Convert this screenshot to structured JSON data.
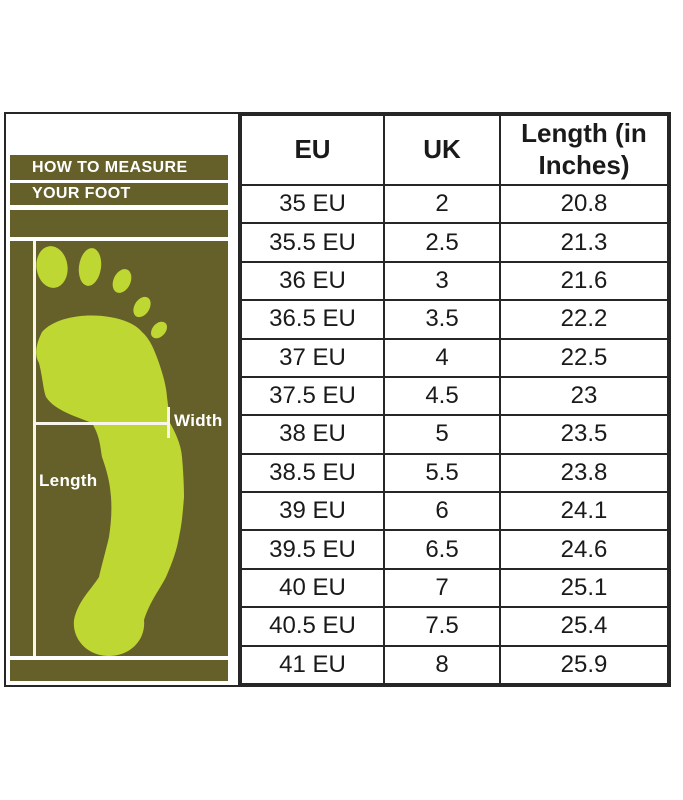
{
  "panel": {
    "title_line1": "HOW TO MEASURE",
    "title_line2": "YOUR FOOT",
    "width_label": "Width",
    "length_label": "Length"
  },
  "table": {
    "columns": [
      "EU",
      "UK",
      "Length (in Inches)"
    ],
    "rows": [
      [
        "35 EU",
        "2",
        "20.8"
      ],
      [
        "35.5 EU",
        "2.5",
        "21.3"
      ],
      [
        "36 EU",
        "3",
        "21.6"
      ],
      [
        "36.5 EU",
        "3.5",
        "22.2"
      ],
      [
        "37 EU",
        "4",
        "22.5"
      ],
      [
        "37.5 EU",
        "4.5",
        "23"
      ],
      [
        "38 EU",
        "5",
        "23.5"
      ],
      [
        "38.5 EU",
        "5.5",
        "23.8"
      ],
      [
        "39 EU",
        "6",
        "24.1"
      ],
      [
        "39.5 EU",
        "6.5",
        "24.6"
      ],
      [
        "40 EU",
        "7",
        "25.1"
      ],
      [
        "40.5 EU",
        "7.5",
        "25.4"
      ],
      [
        "41 EU",
        "8",
        "25.9"
      ]
    ]
  },
  "colors": {
    "olive": "#65602a",
    "foot_green": "#bfd732",
    "measure_line": "#f7f5ea",
    "table_border": "#262626",
    "text": "#1a1a1a"
  },
  "chart_data": {
    "type": "table",
    "columns": [
      "EU",
      "UK",
      "Length (in Inches)"
    ],
    "rows": [
      [
        "35 EU",
        2,
        20.8
      ],
      [
        "35.5 EU",
        2.5,
        21.3
      ],
      [
        "36 EU",
        3,
        21.6
      ],
      [
        "36.5 EU",
        3.5,
        22.2
      ],
      [
        "37 EU",
        4,
        22.5
      ],
      [
        "37.5 EU",
        4.5,
        23
      ],
      [
        "38 EU",
        5,
        23.5
      ],
      [
        "38.5 EU",
        5.5,
        23.8
      ],
      [
        "39 EU",
        6,
        24.1
      ],
      [
        "39.5 EU",
        6.5,
        24.6
      ],
      [
        "40 EU",
        7,
        25.1
      ],
      [
        "40.5 EU",
        7.5,
        25.4
      ],
      [
        "41 EU",
        8,
        25.9
      ]
    ]
  }
}
